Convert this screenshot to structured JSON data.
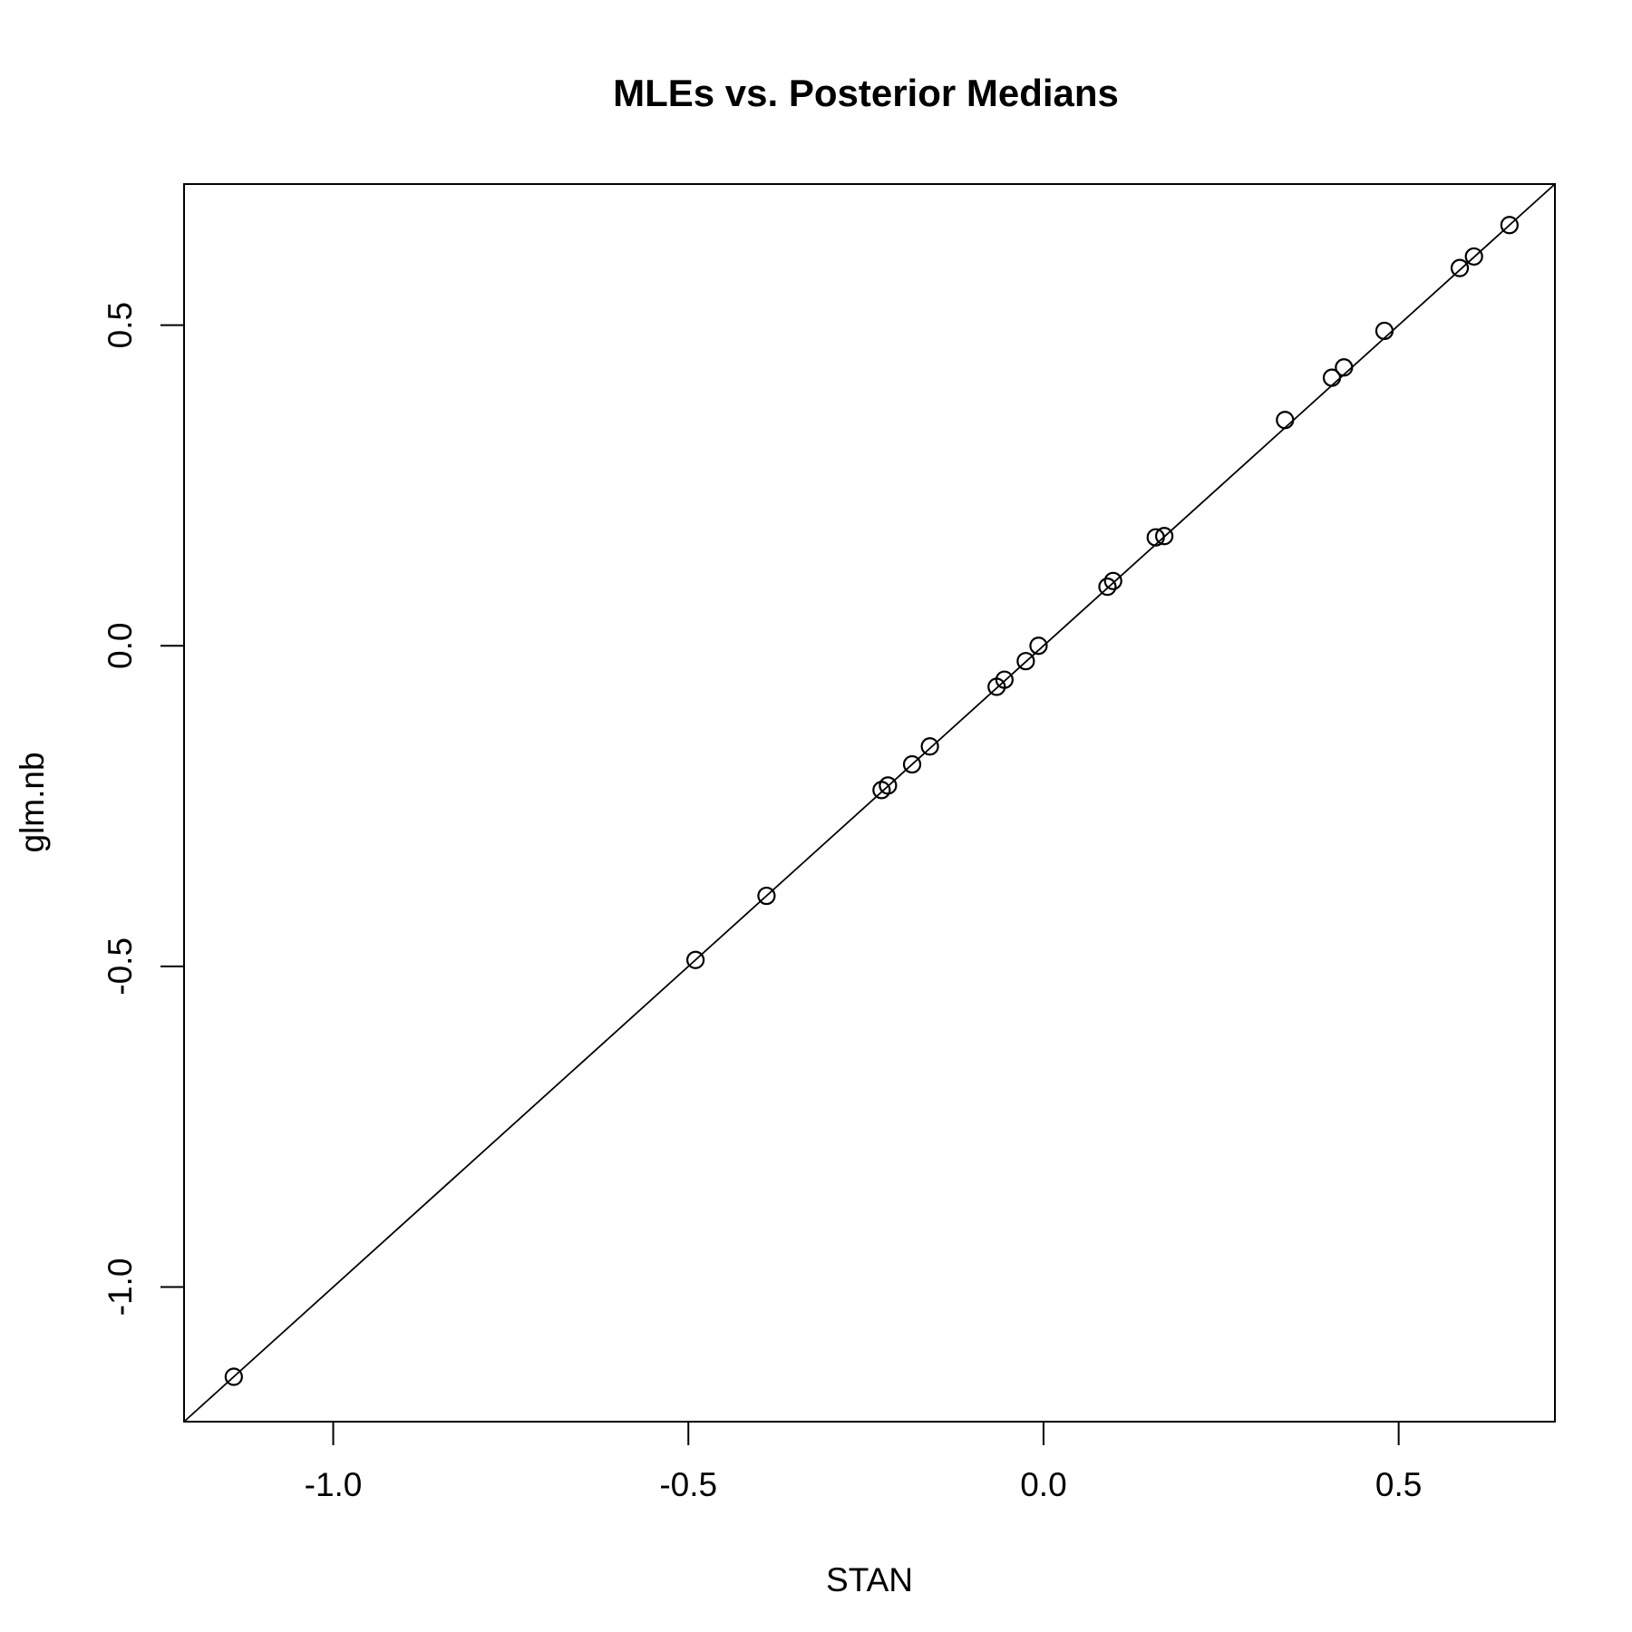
{
  "chart_data": {
    "type": "scatter",
    "title": "MLEs vs. Posterior Medians",
    "xlabel": "STAN",
    "ylabel": "glm.nb",
    "xlim": [
      -1.21,
      0.72
    ],
    "ylim": [
      -1.21,
      0.72
    ],
    "x_ticks": [
      -1.0,
      -0.5,
      0.0,
      0.5
    ],
    "x_tick_labels": [
      "-1.0",
      "-0.5",
      "0.0",
      "0.5"
    ],
    "y_ticks": [
      -1.0,
      -0.5,
      0.0,
      0.5
    ],
    "y_tick_labels": [
      "-1.0",
      "-0.5",
      "0.0",
      "0.5"
    ],
    "grid": false,
    "marker": "open-circle",
    "reference_line": {
      "intercept": 0,
      "slope": 1
    },
    "points": [
      {
        "x": -1.14,
        "y": -1.14
      },
      {
        "x": -0.49,
        "y": -0.49
      },
      {
        "x": -0.39,
        "y": -0.39
      },
      {
        "x": -0.228,
        "y": -0.225
      },
      {
        "x": -0.219,
        "y": -0.218
      },
      {
        "x": -0.185,
        "y": -0.185
      },
      {
        "x": -0.16,
        "y": -0.157
      },
      {
        "x": -0.066,
        "y": -0.064
      },
      {
        "x": -0.055,
        "y": -0.053
      },
      {
        "x": -0.025,
        "y": -0.024
      },
      {
        "x": -0.007,
        "y": 0.0
      },
      {
        "x": 0.09,
        "y": 0.092
      },
      {
        "x": 0.098,
        "y": 0.101
      },
      {
        "x": 0.158,
        "y": 0.169
      },
      {
        "x": 0.17,
        "y": 0.171
      },
      {
        "x": 0.34,
        "y": 0.352
      },
      {
        "x": 0.406,
        "y": 0.418
      },
      {
        "x": 0.423,
        "y": 0.434
      },
      {
        "x": 0.48,
        "y": 0.491
      },
      {
        "x": 0.586,
        "y": 0.589
      },
      {
        "x": 0.606,
        "y": 0.607
      },
      {
        "x": 0.656,
        "y": 0.656
      }
    ]
  }
}
